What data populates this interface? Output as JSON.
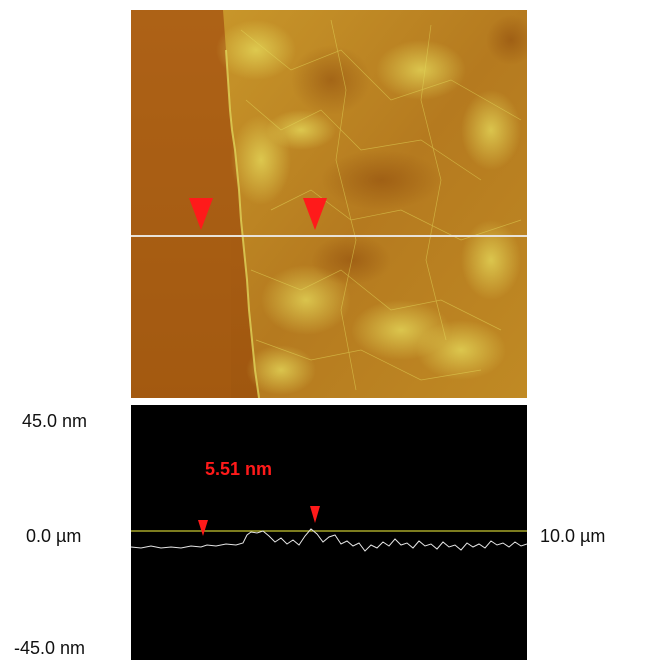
{
  "figure": {
    "profile": {
      "y_max_label": "45.0 nm",
      "y_min_label": "-45.0 nm",
      "x_start_label": "0.0 µm",
      "x_end_label": "10.0 µm",
      "step_height_label": "5.51 nm"
    },
    "colors": {
      "substrate": "#a35a14",
      "flake": "#b87d20",
      "highlight": "#e3d85a",
      "marker": "#ff1a1a",
      "scan_line": "#e8e2d8",
      "baseline": "#c8c832",
      "profile_trace": "#e6e6e6"
    }
  }
}
